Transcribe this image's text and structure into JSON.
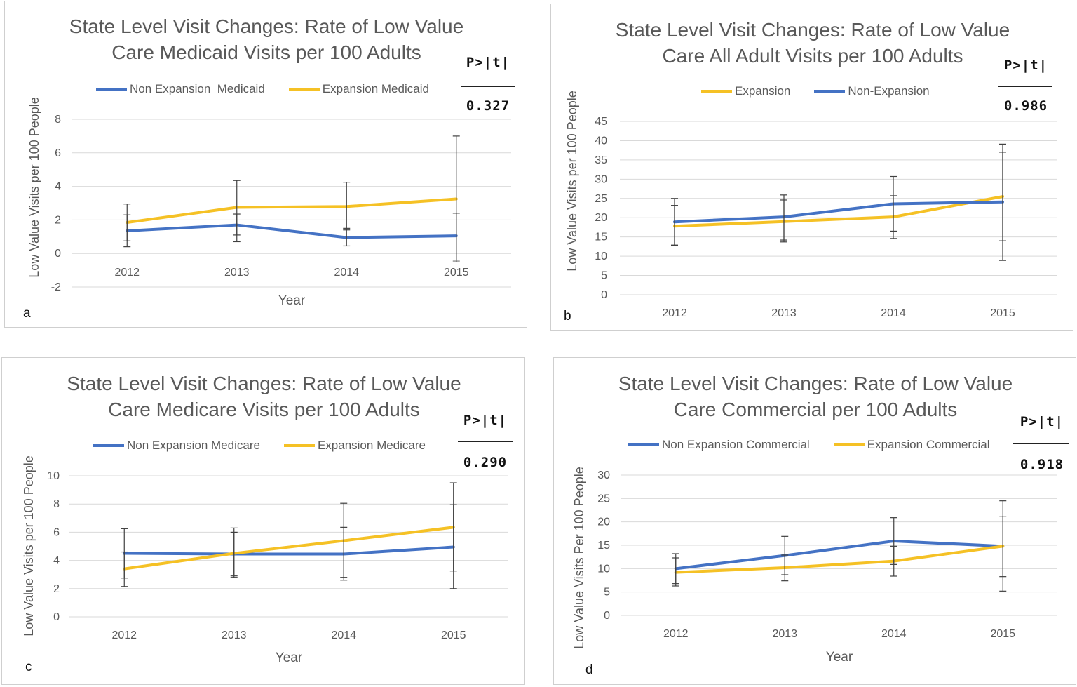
{
  "colors": {
    "non_expansion": "#4472c4",
    "expansion": "#f5c125",
    "grid": "#d9d9d9",
    "errorbar": "#404040"
  },
  "p_header": "P>|t|",
  "chart_data": [
    {
      "panel": "a",
      "type": "line",
      "title_line1": "State Level Visit Changes: Rate of Low Value",
      "title_line2": "Care Medicaid Visits per 100 Adults",
      "xlabel": "Year",
      "ylabel": "Low Value Visits per 100 People",
      "p_value": "0.327",
      "categories": [
        "2012",
        "2013",
        "2014",
        "2015"
      ],
      "ylim": [
        -2,
        8
      ],
      "yticks": [
        "8",
        "6",
        "4",
        "2",
        "0",
        "-2"
      ],
      "ytick_values": [
        8,
        6,
        4,
        2,
        0,
        -2
      ],
      "grid": true,
      "legend_position": "top",
      "series": [
        {
          "name": "Non Expansion  Medicaid",
          "color_key": "non_expansion",
          "values": [
            1.35,
            1.7,
            0.95,
            1.05
          ],
          "err_low": [
            0.4,
            1.1,
            0.45,
            -0.4
          ],
          "err_high": [
            2.3,
            2.35,
            1.5,
            2.4
          ]
        },
        {
          "name": "Expansion Medicaid",
          "color_key": "expansion",
          "values": [
            1.85,
            2.75,
            2.8,
            3.25
          ],
          "err_low": [
            0.75,
            0.7,
            1.4,
            -0.5
          ],
          "err_high": [
            2.95,
            4.35,
            4.25,
            7.0
          ]
        }
      ]
    },
    {
      "panel": "b",
      "type": "line",
      "title_line1": "State Level Visit Changes: Rate of Low Value",
      "title_line2": "Care All Adult Visits per 100 Adults",
      "xlabel": "",
      "ylabel": "Low Value Visits per 100 People",
      "p_value": "0.986",
      "categories": [
        "2012",
        "2013",
        "2014",
        "2015"
      ],
      "ylim": [
        0,
        45
      ],
      "yticks": [
        "45",
        "40",
        "35",
        "30",
        "25",
        "20",
        "15",
        "10",
        "5",
        "0"
      ],
      "ytick_values": [
        45,
        40,
        35,
        30,
        25,
        20,
        15,
        10,
        5,
        0
      ],
      "grid": true,
      "legend_position": "top",
      "series": [
        {
          "name": "Expansion",
          "color_key": "expansion",
          "values": [
            17.8,
            19.0,
            20.2,
            25.5
          ],
          "err_low": [
            12.9,
            14.2,
            14.6,
            8.9
          ],
          "err_high": [
            23.2,
            24.6,
            25.7,
            37.0
          ]
        },
        {
          "name": "Non-Expansion",
          "color_key": "non_expansion",
          "values": [
            18.9,
            20.2,
            23.6,
            24.1
          ],
          "err_low": [
            12.8,
            13.7,
            16.5,
            14.0
          ],
          "err_high": [
            25.0,
            25.9,
            30.7,
            39.1
          ]
        }
      ]
    },
    {
      "panel": "c",
      "type": "line",
      "title_line1": "State Level Visit Changes: Rate of Low Value",
      "title_line2": "Care Medicare Visits per 100 Adults",
      "xlabel": "Year",
      "ylabel": "Low Value Visits per 100 People",
      "p_value": "0.290",
      "categories": [
        "2012",
        "2013",
        "2014",
        "2015"
      ],
      "ylim": [
        0,
        10
      ],
      "yticks": [
        "10",
        "8",
        "6",
        "4",
        "2",
        "0"
      ],
      "ytick_values": [
        10,
        8,
        6,
        4,
        2,
        0
      ],
      "grid": true,
      "legend_position": "top",
      "series": [
        {
          "name": "Non Expansion Medicare",
          "color_key": "non_expansion",
          "values": [
            4.5,
            4.45,
            4.45,
            4.95
          ],
          "err_low": [
            2.75,
            2.9,
            2.8,
            2.0
          ],
          "err_high": [
            6.25,
            6.0,
            6.35,
            7.95
          ]
        },
        {
          "name": "Expansion Medicare",
          "color_key": "expansion",
          "values": [
            3.4,
            4.5,
            5.4,
            6.35
          ],
          "err_low": [
            2.15,
            2.8,
            2.6,
            3.25
          ],
          "err_high": [
            4.6,
            6.3,
            8.05,
            9.5
          ]
        }
      ]
    },
    {
      "panel": "d",
      "type": "line",
      "title_line1": "State Level Visit Changes: Rate of Low Value",
      "title_line2": "Care Commercial per 100 Adults",
      "xlabel": "Year",
      "ylabel": "Low Value Visits Per 100 People",
      "p_value": "0.918",
      "categories": [
        "2012",
        "2013",
        "2014",
        "2015"
      ],
      "ylim": [
        0,
        30
      ],
      "yticks": [
        "30",
        "25",
        "20",
        "15",
        "10",
        "5",
        "0"
      ],
      "ytick_values": [
        30,
        25,
        20,
        15,
        10,
        5,
        0
      ],
      "grid": true,
      "legend_position": "top",
      "series": [
        {
          "name": "Non Expansion Commercial",
          "color_key": "non_expansion",
          "values": [
            10.0,
            12.8,
            15.9,
            14.8
          ],
          "err_low": [
            6.8,
            8.7,
            10.9,
            8.3
          ],
          "err_high": [
            13.2,
            16.9,
            20.9,
            21.2
          ]
        },
        {
          "name": "Expansion Commercial",
          "color_key": "expansion",
          "values": [
            9.2,
            10.2,
            11.6,
            14.8
          ],
          "err_low": [
            6.3,
            7.4,
            8.4,
            5.2
          ],
          "err_high": [
            12.3,
            12.9,
            14.8,
            24.5
          ]
        }
      ]
    }
  ]
}
